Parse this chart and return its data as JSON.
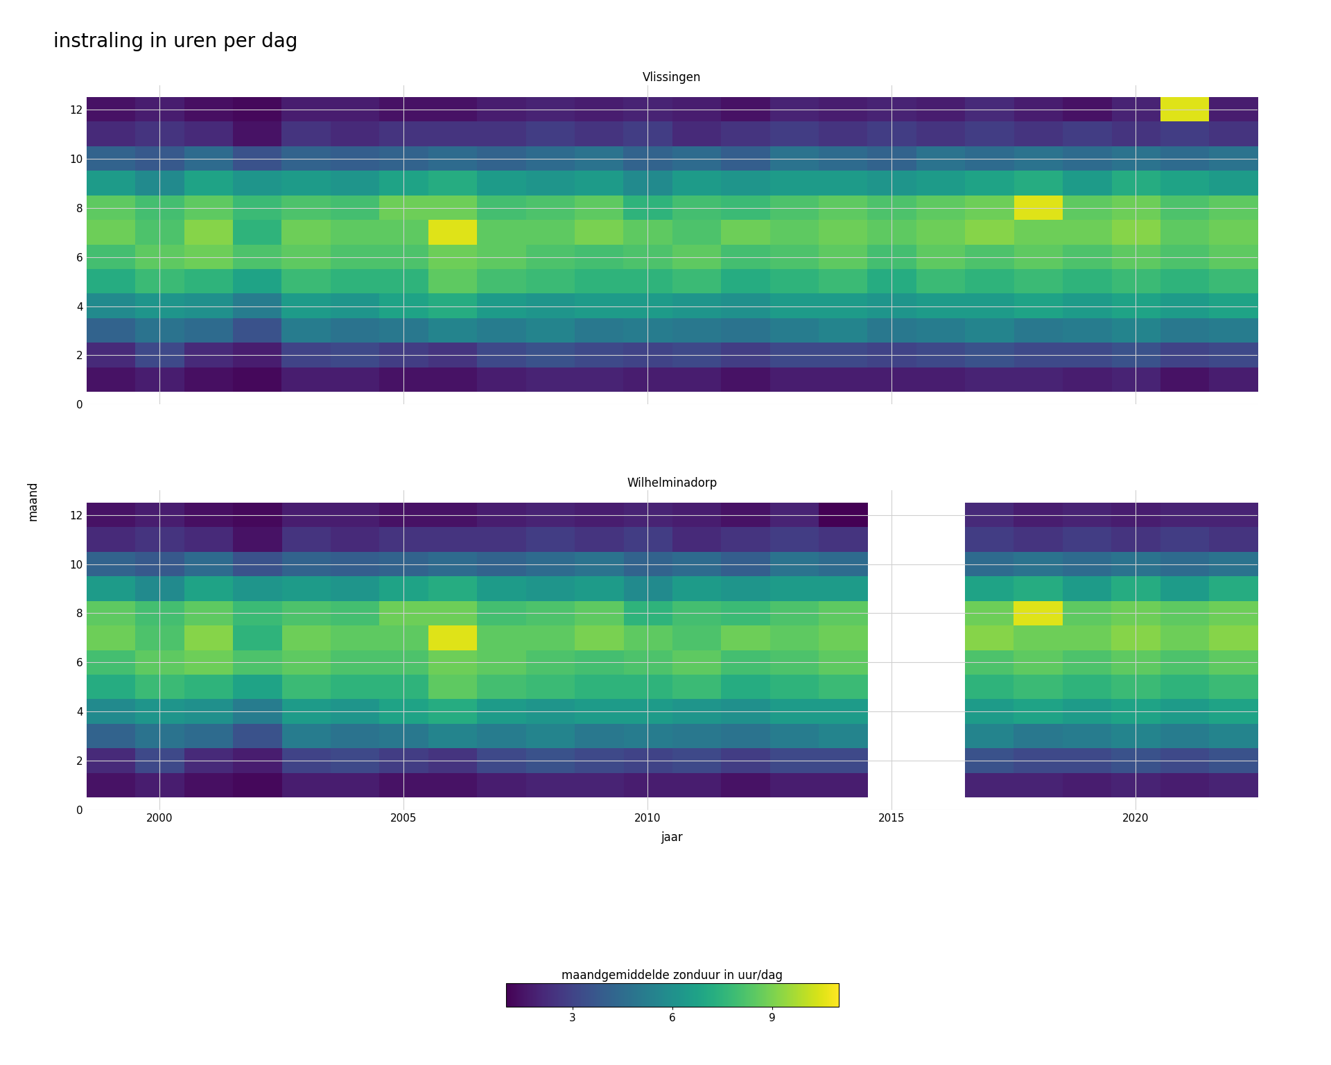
{
  "title": "instraling in uren per dag",
  "ylabel": "maand",
  "xlabel": "jaar",
  "colorbar_label": "maandgemiddelde zonduur in uur/dag",
  "colorbar_ticks": [
    3,
    6,
    9
  ],
  "vmin": 1.0,
  "vmax": 11.0,
  "station1_title": "Vlissingen",
  "station2_title": "Wilhelminadorp",
  "years_vlissingen": [
    1999,
    2000,
    2001,
    2002,
    2003,
    2004,
    2005,
    2006,
    2007,
    2008,
    2009,
    2010,
    2011,
    2012,
    2013,
    2014,
    2015,
    2016,
    2017,
    2018,
    2019,
    2020,
    2021,
    2022
  ],
  "years_wilhelminadorp": [
    1999,
    2000,
    2001,
    2002,
    2003,
    2004,
    2005,
    2006,
    2007,
    2008,
    2009,
    2010,
    2011,
    2012,
    2013,
    2014,
    2017,
    2018,
    2019,
    2020,
    2021,
    2022
  ],
  "background_color": "#ffffff",
  "cmap": "viridis",
  "title_fontsize": 20,
  "subtitle_fontsize": 12,
  "label_fontsize": 12,
  "tick_fontsize": 11,
  "colorbar_fontsize": 12,
  "ytick_locs": [
    0,
    2,
    4,
    6,
    8,
    10,
    12
  ],
  "xtick_locs": [
    2000,
    2005,
    2010,
    2015,
    2020
  ],
  "grid_color": "#d0d0d0",
  "data_vlissingen": [
    [
      1.5,
      2.2,
      4.2,
      5.8,
      7.2,
      8.0,
      8.8,
      8.5,
      6.5,
      4.2,
      2.2,
      1.5
    ],
    [
      1.8,
      3.2,
      4.8,
      6.2,
      7.8,
      8.5,
      8.2,
      8.0,
      5.8,
      3.8,
      2.5,
      1.8
    ],
    [
      1.4,
      2.2,
      4.5,
      6.0,
      7.5,
      8.8,
      9.2,
      8.5,
      6.8,
      4.5,
      2.2,
      1.4
    ],
    [
      1.2,
      1.8,
      3.5,
      5.2,
      6.8,
      8.2,
      7.5,
      7.8,
      6.2,
      3.5,
      1.5,
      1.2
    ],
    [
      1.8,
      3.0,
      5.2,
      6.5,
      7.8,
      8.5,
      8.8,
      8.2,
      6.5,
      4.2,
      2.5,
      1.8
    ],
    [
      1.8,
      3.2,
      4.8,
      6.2,
      7.5,
      8.2,
      8.5,
      8.0,
      6.2,
      4.0,
      2.2,
      1.8
    ],
    [
      1.5,
      2.8,
      5.0,
      6.8,
      7.5,
      8.2,
      8.5,
      8.8,
      6.8,
      4.2,
      2.5,
      1.5
    ],
    [
      1.5,
      2.5,
      5.5,
      7.2,
      8.5,
      8.8,
      10.5,
      8.8,
      7.2,
      4.5,
      2.5,
      1.5
    ],
    [
      1.8,
      3.2,
      5.2,
      6.5,
      8.0,
      8.5,
      8.5,
      8.0,
      6.5,
      4.2,
      2.5,
      1.8
    ],
    [
      2.0,
      3.5,
      5.5,
      6.2,
      7.8,
      8.2,
      8.5,
      8.2,
      6.2,
      4.5,
      2.8,
      2.0
    ],
    [
      2.0,
      3.2,
      5.0,
      6.5,
      7.5,
      8.0,
      9.0,
      8.5,
      6.5,
      4.8,
      2.5,
      1.8
    ],
    [
      1.8,
      3.0,
      5.2,
      6.5,
      7.5,
      8.2,
      8.5,
      7.5,
      5.8,
      4.2,
      2.8,
      2.0
    ],
    [
      1.8,
      3.2,
      5.0,
      6.2,
      7.8,
      8.5,
      8.2,
      8.0,
      6.5,
      4.5,
      2.2,
      1.8
    ],
    [
      1.5,
      2.8,
      4.8,
      6.0,
      7.2,
      8.0,
      8.8,
      7.8,
      6.2,
      4.0,
      2.5,
      1.5
    ],
    [
      1.8,
      3.2,
      5.2,
      6.5,
      7.5,
      8.2,
      8.5,
      8.2,
      6.5,
      4.8,
      2.8,
      2.0
    ],
    [
      1.8,
      3.2,
      5.5,
      6.5,
      7.8,
      8.5,
      8.8,
      8.5,
      6.5,
      4.5,
      2.5,
      1.8
    ],
    [
      1.8,
      3.0,
      5.0,
      6.2,
      7.2,
      8.0,
      8.5,
      8.2,
      6.2,
      4.2,
      2.8,
      2.0
    ],
    [
      1.8,
      3.2,
      5.2,
      6.5,
      7.8,
      8.5,
      8.8,
      8.5,
      6.5,
      4.8,
      2.5,
      1.8
    ],
    [
      2.0,
      3.5,
      5.5,
      6.5,
      7.5,
      8.2,
      9.2,
      8.8,
      6.8,
      4.5,
      2.8,
      2.2
    ],
    [
      2.0,
      3.2,
      5.0,
      6.8,
      7.8,
      8.5,
      8.8,
      10.5,
      7.2,
      4.8,
      2.5,
      1.8
    ],
    [
      1.8,
      3.2,
      5.2,
      6.5,
      7.5,
      8.2,
      8.8,
      8.5,
      6.5,
      4.5,
      2.8,
      1.5
    ],
    [
      2.0,
      3.5,
      5.5,
      6.8,
      7.8,
      8.5,
      9.2,
      8.8,
      7.2,
      4.8,
      2.5,
      2.0
    ],
    [
      1.5,
      3.0,
      5.0,
      6.5,
      7.5,
      8.2,
      8.5,
      8.2,
      6.8,
      4.5,
      2.8,
      10.5
    ],
    [
      1.8,
      3.2,
      5.2,
      6.8,
      7.8,
      8.5,
      8.8,
      8.5,
      6.5,
      4.8,
      2.5,
      1.8
    ]
  ],
  "data_wilhelminadorp": [
    [
      1.5,
      2.2,
      4.2,
      5.8,
      7.2,
      8.0,
      8.8,
      8.5,
      6.5,
      4.2,
      2.2,
      1.5
    ],
    [
      1.8,
      3.2,
      4.8,
      6.2,
      7.8,
      8.5,
      8.2,
      8.0,
      5.8,
      3.8,
      2.5,
      1.8
    ],
    [
      1.4,
      2.2,
      4.5,
      6.0,
      7.5,
      8.8,
      9.2,
      8.5,
      6.8,
      4.5,
      2.2,
      1.4
    ],
    [
      1.2,
      1.8,
      3.5,
      5.2,
      6.8,
      8.2,
      7.5,
      7.8,
      6.2,
      3.5,
      1.5,
      1.2
    ],
    [
      1.8,
      3.0,
      5.2,
      6.5,
      7.8,
      8.5,
      8.8,
      8.2,
      6.5,
      4.2,
      2.5,
      1.8
    ],
    [
      1.8,
      3.2,
      4.8,
      6.2,
      7.5,
      8.2,
      8.5,
      8.0,
      6.2,
      4.0,
      2.2,
      1.8
    ],
    [
      1.5,
      2.8,
      5.0,
      6.8,
      7.5,
      8.2,
      8.5,
      8.8,
      6.8,
      4.2,
      2.5,
      1.5
    ],
    [
      1.5,
      2.5,
      5.5,
      7.2,
      8.5,
      8.8,
      10.5,
      8.8,
      7.2,
      4.5,
      2.5,
      1.5
    ],
    [
      1.8,
      3.2,
      5.2,
      6.5,
      8.0,
      8.5,
      8.5,
      8.0,
      6.5,
      4.2,
      2.5,
      1.8
    ],
    [
      2.0,
      3.5,
      5.5,
      6.2,
      7.8,
      8.2,
      8.5,
      8.2,
      6.2,
      4.5,
      2.8,
      2.0
    ],
    [
      2.0,
      3.2,
      5.0,
      6.5,
      7.5,
      8.0,
      9.0,
      8.5,
      6.5,
      4.8,
      2.5,
      1.8
    ],
    [
      1.8,
      3.0,
      5.2,
      6.5,
      7.5,
      8.2,
      8.5,
      7.5,
      5.8,
      4.2,
      2.8,
      2.0
    ],
    [
      1.8,
      3.2,
      5.0,
      6.2,
      7.8,
      8.5,
      8.2,
      8.0,
      6.5,
      4.5,
      2.2,
      1.8
    ],
    [
      1.5,
      2.8,
      4.8,
      6.0,
      7.2,
      8.0,
      8.8,
      7.8,
      6.2,
      4.0,
      2.5,
      1.5
    ],
    [
      1.8,
      3.2,
      5.2,
      6.5,
      7.5,
      8.2,
      8.5,
      8.2,
      6.5,
      4.8,
      2.8,
      2.0
    ],
    [
      1.8,
      3.2,
      5.5,
      6.5,
      7.8,
      8.5,
      8.8,
      8.5,
      6.5,
      4.5,
      2.5,
      0.8
    ],
    [
      2.0,
      3.5,
      5.5,
      6.5,
      7.5,
      8.2,
      9.2,
      8.8,
      6.8,
      4.5,
      2.8,
      2.2
    ],
    [
      2.0,
      3.2,
      5.0,
      6.8,
      7.8,
      8.5,
      8.8,
      10.5,
      7.2,
      4.8,
      2.5,
      1.8
    ],
    [
      1.8,
      3.2,
      5.2,
      6.5,
      7.5,
      8.2,
      8.8,
      8.5,
      6.5,
      4.5,
      2.8,
      2.0
    ],
    [
      2.0,
      3.5,
      5.5,
      6.8,
      7.8,
      8.5,
      9.2,
      8.8,
      7.2,
      4.8,
      2.5,
      1.8
    ],
    [
      1.8,
      3.2,
      5.2,
      6.5,
      7.5,
      8.2,
      8.8,
      8.5,
      6.5,
      4.5,
      2.8,
      2.0
    ],
    [
      2.0,
      3.5,
      5.5,
      6.8,
      7.8,
      8.5,
      9.2,
      8.8,
      7.2,
      4.8,
      2.5,
      2.0
    ]
  ]
}
